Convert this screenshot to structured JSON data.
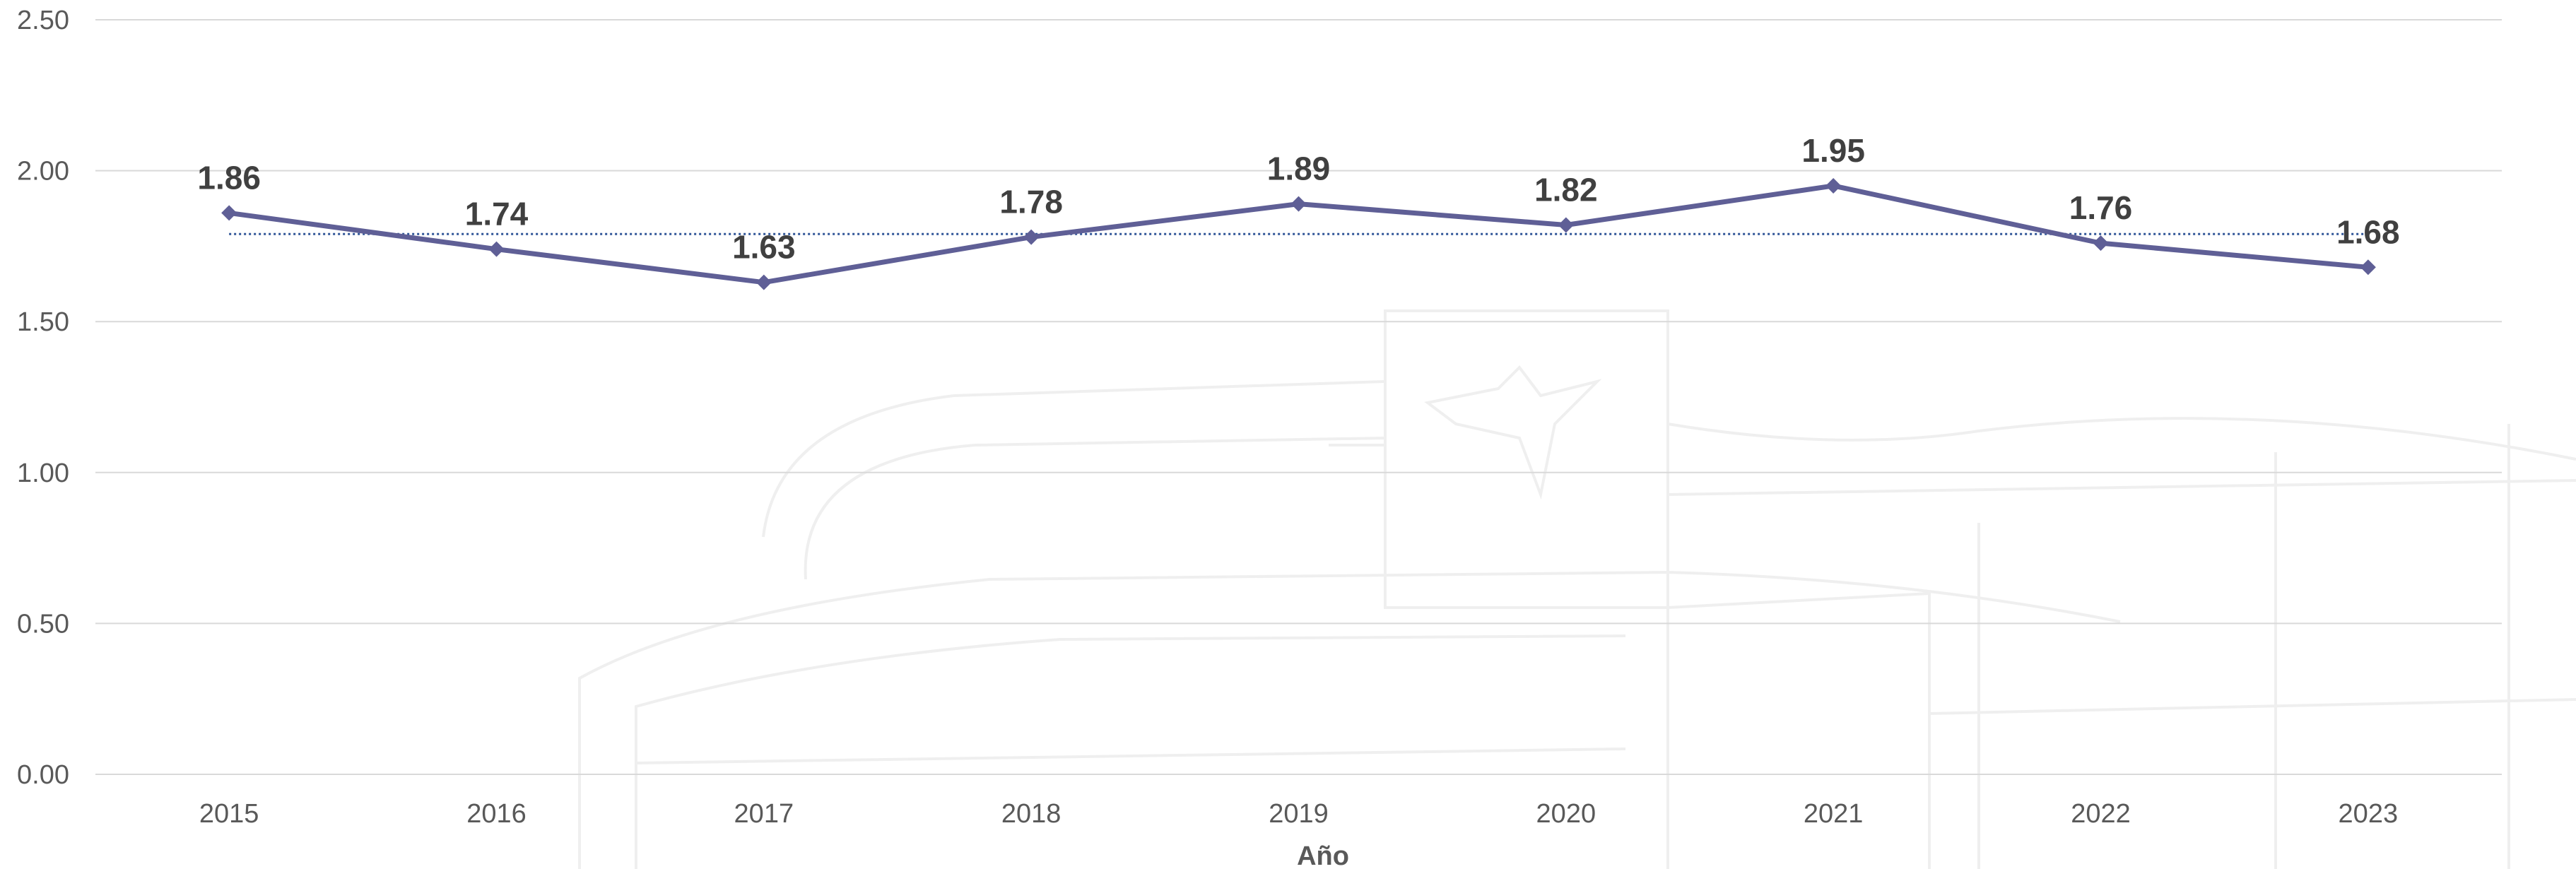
{
  "chart_data": {
    "type": "line",
    "categories": [
      "2015",
      "2016",
      "2017",
      "2018",
      "2019",
      "2020",
      "2021",
      "2022",
      "2023"
    ],
    "series": [
      {
        "values": [
          1.86,
          1.74,
          1.63,
          1.78,
          1.89,
          1.82,
          1.95,
          1.76,
          1.68
        ],
        "data_labels": [
          "1.86",
          "1.74",
          "1.63",
          "1.78",
          "1.89",
          "1.82",
          "1.95",
          "1.76",
          "1.68"
        ],
        "color": "#5f5f96",
        "marker": "diamond"
      }
    ],
    "reference_line": {
      "value": 1.79,
      "style": "dotted",
      "color": "#2f5597"
    },
    "xlabel": "Año",
    "ylabel": "",
    "ylim": [
      0,
      2.5
    ],
    "yticks": [
      "0.00",
      "0.50",
      "1.00",
      "1.50",
      "2.00",
      "2.50"
    ],
    "ytick_values": [
      0,
      0.5,
      1.0,
      1.5,
      2.0,
      2.5
    ],
    "grid": true,
    "legend": "none"
  }
}
